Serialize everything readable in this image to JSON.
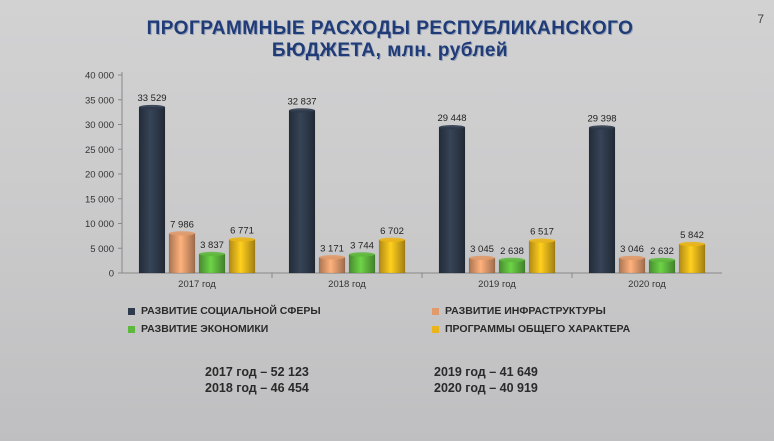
{
  "page_number": "7",
  "title_line1": "ПРОГРАММНЫЕ РАСХОДЫ РЕСПУБЛИКАНСКОГО",
  "title_line2": "БЮДЖЕТА, млн. рублей",
  "chart_data": {
    "type": "bar",
    "categories": [
      "2017 год",
      "2018 год",
      "2019 год",
      "2020 год"
    ],
    "ylim": [
      0,
      40000
    ],
    "yticks": [
      "0",
      "5 000",
      "10 000",
      "15 000",
      "20 000",
      "25 000",
      "30 000",
      "35 000",
      "40 000"
    ],
    "series": [
      {
        "name": "РАЗВИТИЕ СОЦИАЛЬНОЙ СФЕРЫ",
        "color": "#2f3b4c",
        "values": [
          33529,
          32837,
          29448,
          29398
        ],
        "labels": [
          "33 529",
          "32 837",
          "29 448",
          "29 398"
        ]
      },
      {
        "name": "РАЗВИТИЕ ИНФРАСТРУКТУРЫ",
        "color": "#e09a6c",
        "values": [
          7986,
          3171,
          3045,
          3046
        ],
        "labels": [
          "7 986",
          "3 171",
          "3 045",
          "3 046"
        ]
      },
      {
        "name": "РАЗВИТИЕ ЭКОНОМИКИ",
        "color": "#5fb83e",
        "values": [
          3837,
          3744,
          2638,
          2632
        ],
        "labels": [
          "3 837",
          "3 744",
          "2 638",
          "2 632"
        ]
      },
      {
        "name": "ПРОГРАММЫ ОБЩЕГО ХАРАКТЕРА",
        "color": "#e9b51a",
        "values": [
          6771,
          6702,
          6517,
          5842
        ],
        "labels": [
          "6 771",
          "6 702",
          "6 517",
          "5 842"
        ]
      }
    ],
    "grid": false,
    "legend_position": "bottom"
  },
  "totals": {
    "t2017": "2017 год – 52 123",
    "t2018": "2018 год – 46 454",
    "t2019": "2019 год – 41 649",
    "t2020": "2020 год – 40 919"
  }
}
